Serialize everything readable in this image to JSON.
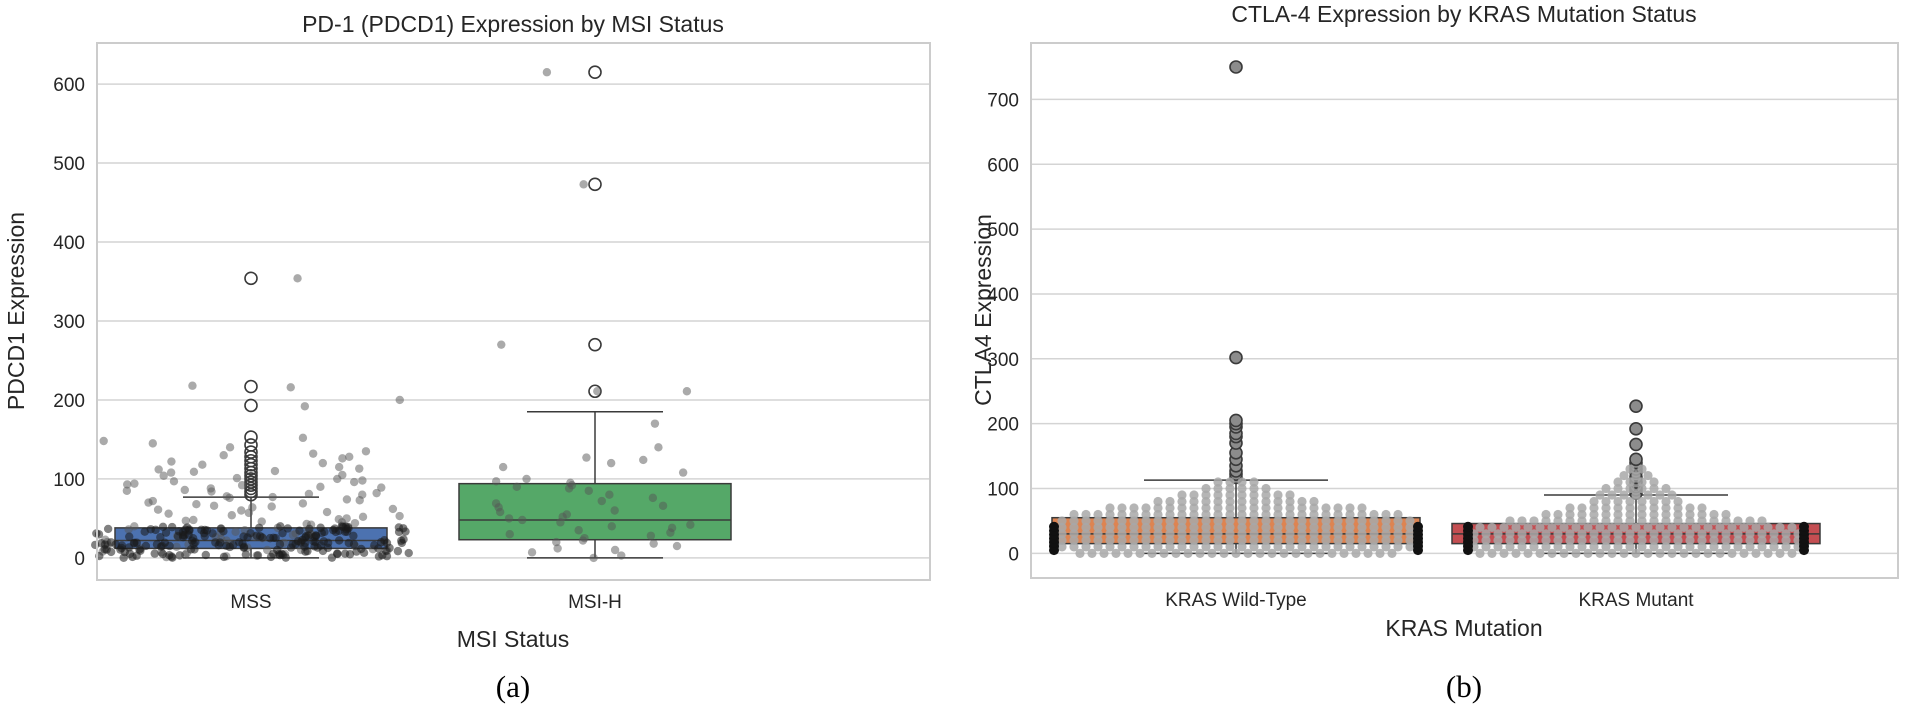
{
  "colors": {
    "grid": "#d4d4d4",
    "frame": "#cccccc",
    "msi_mss": "#4c72b0",
    "msi_h": "#55a868",
    "kras_wt": "#dd8452",
    "kras_mut": "#c44e52",
    "median": "#3a3a3a",
    "point": "#555555"
  },
  "chart_data": [
    {
      "type": "box",
      "panel_label": "(a)",
      "title": "PD-1 (PDCD1) Expression by MSI Status",
      "xlabel": "MSI Status",
      "ylabel": "PDCD1 Expression",
      "ylim": [
        -28,
        652
      ],
      "yticks": [
        0,
        100,
        200,
        300,
        400,
        500,
        600
      ],
      "grid": true,
      "categories": [
        "MSS",
        "MSI-H"
      ],
      "boxes": [
        {
          "category": "MSS",
          "color_key": "msi_mss",
          "q1": 12,
          "median": 22,
          "q3": 38,
          "whisker_low": 0,
          "whisker_high": 77,
          "outliers": [
            80,
            84,
            88,
            92,
            96,
            100,
            104,
            108,
            113,
            118,
            123,
            128,
            134,
            143,
            153,
            193,
            217,
            354
          ]
        },
        {
          "category": "MSI-H",
          "color_key": "msi_h",
          "q1": 23,
          "median": 48,
          "q3": 94,
          "whisker_low": 0,
          "whisker_high": 185,
          "outliers": [
            211,
            270,
            473,
            615
          ]
        }
      ],
      "jitter_points": [
        {
          "category": "MSS",
          "y": [
            354,
            218,
            216,
            200,
            192,
            152,
            145,
            135,
            132,
            128,
            120,
            118,
            115,
            112,
            110,
            108,
            104,
            100,
            98,
            96,
            94,
            92,
            90,
            88,
            86,
            84,
            82,
            80,
            78,
            76,
            74,
            72,
            70,
            68,
            66,
            64,
            62,
            60,
            58,
            56,
            54,
            52,
            50,
            48,
            46,
            44,
            42,
            40,
            38,
            36,
            34,
            32,
            30,
            28,
            26,
            24,
            22,
            20,
            18,
            16,
            14,
            12,
            10,
            8,
            6,
            4,
            2,
            1,
            45,
            35,
            25,
            15,
            5,
            30,
            20,
            10,
            33,
            27,
            21,
            17,
            13,
            9,
            7,
            3,
            11,
            19,
            23,
            29,
            31,
            37,
            41,
            43,
            47,
            49,
            53,
            57,
            61,
            65,
            69,
            73,
            77,
            81,
            85,
            89,
            93,
            97,
            101,
            105,
            109,
            113,
            122,
            126,
            130,
            140,
            148
          ]
        },
        {
          "category": "MSI-H",
          "y": [
            615,
            473,
            270,
            211,
            211,
            170,
            140,
            127,
            124,
            120,
            115,
            108,
            100,
            97,
            95,
            92,
            90,
            88,
            85,
            80,
            76,
            72,
            69,
            66,
            64,
            60,
            58,
            55,
            52,
            50,
            48,
            45,
            42,
            40,
            38,
            35,
            32,
            30,
            28,
            25,
            22,
            20,
            18,
            15,
            12,
            10,
            7,
            3,
            0
          ]
        }
      ]
    },
    {
      "type": "box",
      "panel_label": "(b)",
      "title": "CTLA-4 Expression by KRAS Mutation Status",
      "xlabel": "KRAS Mutation",
      "ylabel": "CTLA4 Expression",
      "ylim": [
        -38,
        787
      ],
      "yticks": [
        0,
        100,
        200,
        300,
        400,
        500,
        600,
        700
      ],
      "grid": true,
      "categories": [
        "KRAS Wild-Type",
        "KRAS Mutant"
      ],
      "boxes": [
        {
          "category": "KRAS Wild-Type",
          "color_key": "kras_wt",
          "q1": 15,
          "median": 30,
          "q3": 55,
          "whisker_low": 0,
          "whisker_high": 113,
          "outliers": [
            117,
            122,
            127,
            135,
            145,
            155,
            170,
            180,
            185,
            195,
            200,
            205,
            302,
            750
          ]
        },
        {
          "category": "KRAS Mutant",
          "color_key": "kras_mut",
          "q1": 15,
          "median": 30,
          "q3": 46,
          "whisker_low": 0,
          "whisker_high": 90,
          "outliers": [
            93,
            98,
            103,
            110,
            117,
            125,
            130,
            135,
            140,
            145,
            168,
            192,
            227
          ]
        }
      ],
      "swarm_rows": [
        {
          "category": "KRAS Wild-Type",
          "y": [
            0,
            10,
            20,
            30,
            40,
            50,
            60,
            70,
            80,
            90,
            100,
            110
          ],
          "counts": [
            27,
            30,
            30,
            30,
            30,
            30,
            28,
            22,
            14,
            10,
            6,
            4
          ]
        },
        {
          "category": "KRAS Mutant",
          "y": [
            0,
            10,
            20,
            30,
            40,
            50,
            60,
            70,
            80,
            90,
            100,
            110,
            120,
            130
          ],
          "counts": [
            27,
            28,
            28,
            28,
            27,
            22,
            16,
            12,
            8,
            7,
            6,
            4,
            3,
            2
          ]
        }
      ]
    }
  ]
}
